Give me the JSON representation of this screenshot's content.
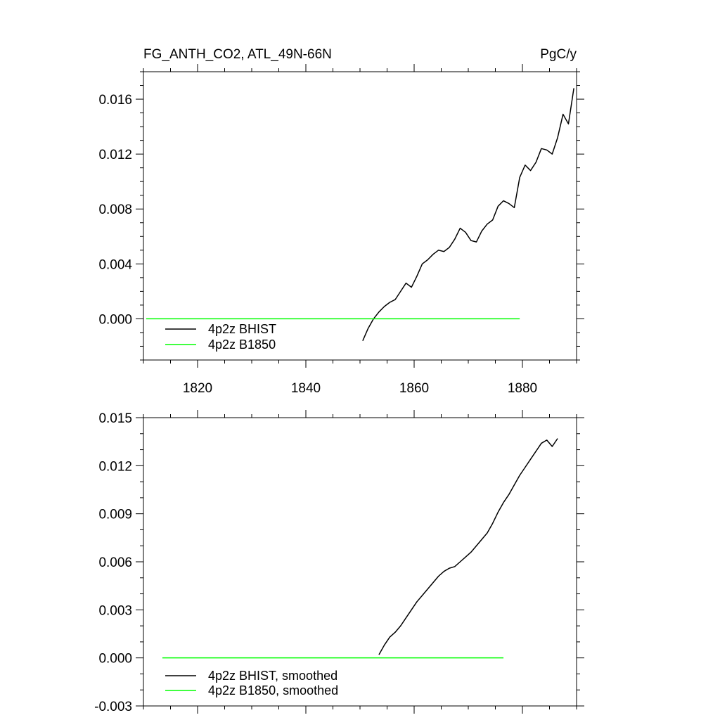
{
  "chart_data": [
    {
      "type": "line",
      "title_left": "FG_ANTH_CO2, ATL_49N-66N",
      "title_right": "PgC/y",
      "xlabel": "",
      "ylabel": "",
      "xlim": [
        1810,
        1890
      ],
      "ylim": [
        -0.003,
        0.018
      ],
      "x_ticks": [
        1820,
        1840,
        1860,
        1880
      ],
      "y_ticks": [
        "0.000",
        "0.004",
        "0.008",
        "0.012",
        "0.016"
      ],
      "y_tick_values": [
        0.0,
        0.004,
        0.008,
        0.012,
        0.016
      ],
      "grid": false,
      "legend_position": "bottom-left",
      "series": [
        {
          "name": "4p2z BHIST",
          "color": "#000000",
          "x": [
            1850.5,
            1851.5,
            1852.5,
            1853.5,
            1854.5,
            1855.5,
            1856.5,
            1857.5,
            1858.5,
            1859.5,
            1860.5,
            1861.5,
            1862.5,
            1863.5,
            1864.5,
            1865.5,
            1866.5,
            1867.5,
            1868.5,
            1869.5,
            1870.5,
            1871.5,
            1872.5,
            1873.5,
            1874.5,
            1875.5,
            1876.5,
            1877.5,
            1878.5,
            1879.5,
            1880.5,
            1881.5,
            1882.5,
            1883.5,
            1884.5,
            1885.5,
            1886.5,
            1887.5,
            1888.5,
            1889.5
          ],
          "y": [
            -0.0016,
            -0.0007,
            0.0,
            0.0005,
            0.0009,
            0.0012,
            0.0014,
            0.002,
            0.0026,
            0.0023,
            0.0031,
            0.004,
            0.0043,
            0.0047,
            0.005,
            0.0049,
            0.0052,
            0.0058,
            0.0066,
            0.0063,
            0.0057,
            0.0056,
            0.0064,
            0.0069,
            0.0072,
            0.0082,
            0.0086,
            0.0084,
            0.0081,
            0.0103,
            0.0112,
            0.0108,
            0.0114,
            0.0124,
            0.0123,
            0.012,
            0.0132,
            0.0149,
            0.0142,
            0.0168
          ]
        },
        {
          "name": "4p2z B1850",
          "color": "#00ff00",
          "x": [
            1810.5,
            1879.5
          ],
          "y": [
            0.0,
            0.0
          ]
        }
      ]
    },
    {
      "type": "line",
      "xlabel": "",
      "ylabel": "",
      "xlim": [
        1810,
        1890
      ],
      "ylim": [
        -0.003,
        0.015
      ],
      "x_ticks": [
        1820,
        1840,
        1860,
        1880
      ],
      "y_ticks": [
        "-0.003",
        "0.000",
        "0.003",
        "0.006",
        "0.009",
        "0.012",
        "0.015"
      ],
      "y_tick_values": [
        -0.003,
        0.0,
        0.003,
        0.006,
        0.009,
        0.012,
        0.015
      ],
      "grid": false,
      "legend_position": "bottom-left",
      "series": [
        {
          "name": "4p2z BHIST, smoothed",
          "color": "#000000",
          "x": [
            1853.5,
            1854.5,
            1855.5,
            1856.5,
            1857.5,
            1858.5,
            1859.5,
            1860.5,
            1861.5,
            1862.5,
            1863.5,
            1864.5,
            1865.5,
            1866.5,
            1867.5,
            1868.5,
            1869.5,
            1870.5,
            1871.5,
            1872.5,
            1873.5,
            1874.5,
            1875.5,
            1876.5,
            1877.5,
            1878.5,
            1879.5,
            1880.5,
            1881.5,
            1882.5,
            1883.5,
            1884.5,
            1885.5,
            1886.5
          ],
          "y": [
            0.0002,
            0.0008,
            0.0013,
            0.0016,
            0.002,
            0.0025,
            0.003,
            0.0035,
            0.0039,
            0.0043,
            0.0047,
            0.0051,
            0.0054,
            0.0056,
            0.0057,
            0.006,
            0.0063,
            0.0066,
            0.007,
            0.0074,
            0.0078,
            0.0084,
            0.0091,
            0.0097,
            0.0102,
            0.0108,
            0.0114,
            0.0119,
            0.0124,
            0.0129,
            0.0134,
            0.0136,
            0.0132,
            0.0137
          ]
        },
        {
          "name": "4p2z B1850, smoothed",
          "color": "#00ff00",
          "x": [
            1813.5,
            1876.5
          ],
          "y": [
            0.0,
            0.0
          ]
        }
      ]
    }
  ]
}
